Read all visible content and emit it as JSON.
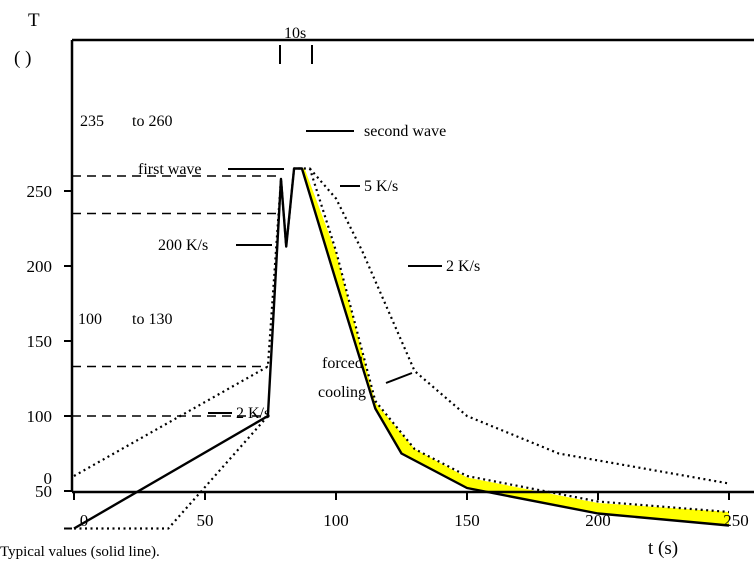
{
  "chart_data": {
    "type": "line",
    "title": "",
    "caption": "Typical values (solid line).",
    "ylabel": "T",
    "yunit": "( )",
    "xlabel": "t (s)",
    "xlim": [
      0,
      250
    ],
    "ylim": [
      0,
      270
    ],
    "x_ticks": [
      0,
      50,
      100,
      150,
      200,
      250
    ],
    "y_ticks": [
      0,
      50,
      100,
      150,
      200,
      250
    ],
    "y_tick_values": [
      25,
      50,
      100,
      150,
      200,
      250
    ],
    "grid": false,
    "series": [
      {
        "style": "solid",
        "points": [
          [
            0,
            25
          ],
          [
            74,
            100
          ],
          [
            79,
            258
          ],
          [
            81,
            213
          ],
          [
            84,
            265
          ],
          [
            87,
            265
          ],
          [
            100,
            190
          ],
          [
            115,
            105
          ],
          [
            125,
            75
          ],
          [
            150,
            52
          ],
          [
            200,
            35
          ],
          [
            250,
            27
          ]
        ]
      },
      {
        "style": "dotted-upper",
        "points": [
          [
            0,
            60
          ],
          [
            74,
            133
          ],
          [
            79,
            258
          ],
          [
            81,
            213
          ],
          [
            84,
            265
          ],
          [
            90,
            265
          ],
          [
            100,
            210
          ],
          [
            115,
            110
          ],
          [
            130,
            78
          ],
          [
            150,
            60
          ],
          [
            200,
            43
          ],
          [
            250,
            36
          ]
        ]
      },
      {
        "style": "dotted-lower",
        "points": [
          [
            0,
            25
          ],
          [
            36,
            25
          ],
          [
            74,
            100
          ]
        ]
      },
      {
        "style": "dotted-slow",
        "points": [
          [
            90,
            265
          ],
          [
            100,
            245
          ],
          [
            110,
            210
          ],
          [
            130,
            130
          ],
          [
            150,
            100
          ],
          [
            185,
            75
          ],
          [
            250,
            55
          ]
        ]
      }
    ],
    "band": {
      "color": "#ffff00",
      "upper": [
        [
          88,
          265
        ],
        [
          100,
          209
        ],
        [
          115,
          109
        ],
        [
          130,
          78
        ],
        [
          150,
          59
        ],
        [
          200,
          42
        ],
        [
          250,
          36
        ]
      ],
      "lower": [
        [
          87,
          265
        ],
        [
          100,
          190
        ],
        [
          115,
          105
        ],
        [
          125,
          75
        ],
        [
          150,
          52
        ],
        [
          200,
          35
        ],
        [
          250,
          27
        ]
      ]
    },
    "reference_lines": [
      {
        "y": 260,
        "x_end": 79
      },
      {
        "y": 235,
        "x_end": 79
      },
      {
        "y": 133,
        "x_end": 74
      },
      {
        "y": 100,
        "x_end": 74
      }
    ],
    "annotations": {
      "range_high": "235",
      "range_high_to": "to 260",
      "range_low": "100",
      "range_low_to": "to 130",
      "interval": "10s",
      "first_wave": "first wave",
      "second_wave": "second wave",
      "rate_200": "200 K/s",
      "rate_5": "5 K/s",
      "rate_2_upper": "2 K/s",
      "rate_2_lower": "2 K/s",
      "forced_cooling_1": "forced",
      "forced_cooling_2": "cooling"
    }
  }
}
